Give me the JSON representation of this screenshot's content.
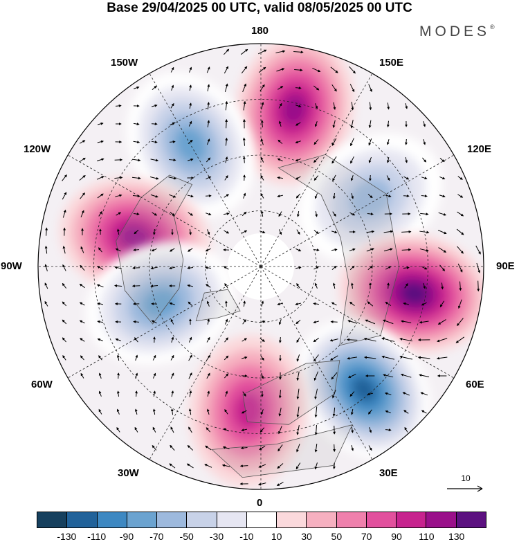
{
  "title": "Base 29/04/2025 00 UTC, valid 08/05/2025 00 UTC",
  "brand": "MODES",
  "brand_mark": "®",
  "labels": {
    "lon_180": "180",
    "lon_150w": "150W",
    "lon_150e": "150E",
    "lon_120w": "120W",
    "lon_120e": "120E",
    "lon_90w": "90W",
    "lon_90e": "90E",
    "lon_60w": "60W",
    "lon_60e": "60E",
    "lon_30w": "30W",
    "lon_30e": "30E",
    "lon_0": "0"
  },
  "reference_vector": "10",
  "colorbar": {
    "colors": [
      "#16405e",
      "#21629a",
      "#3d88c2",
      "#6ba3d0",
      "#9db9dd",
      "#c8d2e8",
      "#e6e6f2",
      "#ffffff",
      "#fbd9dc",
      "#f6b0c0",
      "#ef80ac",
      "#e2509d",
      "#c7238e",
      "#9a108a",
      "#5c1180"
    ],
    "ticks": [
      "-130",
      "-110",
      "-90",
      "-70",
      "-50",
      "-30",
      "-10",
      "10",
      "30",
      "50",
      "70",
      "90",
      "110",
      "130"
    ]
  },
  "anomalies": [
    {
      "lon": 168,
      "dist": 0.72,
      "value": 100
    },
    {
      "lon": -150,
      "dist": 0.63,
      "value": -70
    },
    {
      "lon": -103,
      "dist": 0.58,
      "value": 100
    },
    {
      "lon": 122,
      "dist": 0.58,
      "value": -65
    },
    {
      "lon": 80,
      "dist": 0.7,
      "value": 120
    },
    {
      "lon": 40,
      "dist": 0.72,
      "value": -110
    },
    {
      "lon": -5,
      "dist": 0.65,
      "value": 70
    },
    {
      "lon": -70,
      "dist": 0.48,
      "value": -80
    }
  ]
}
